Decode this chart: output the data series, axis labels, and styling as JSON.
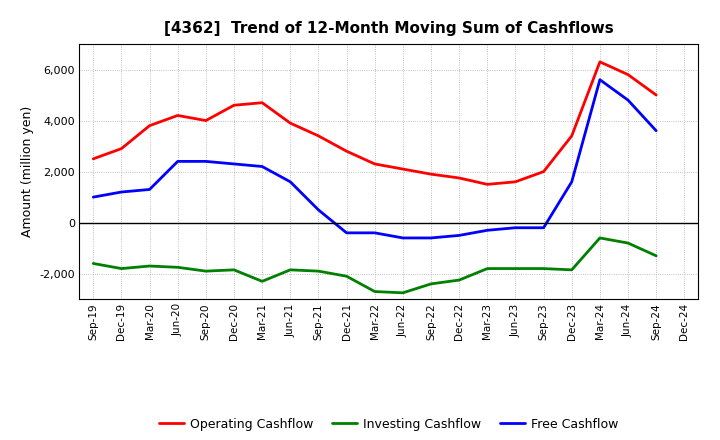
{
  "title": "[4362]  Trend of 12-Month Moving Sum of Cashflows",
  "ylabel": "Amount (million yen)",
  "x_labels": [
    "Sep-19",
    "Dec-19",
    "Mar-20",
    "Jun-20",
    "Sep-20",
    "Dec-20",
    "Mar-21",
    "Jun-21",
    "Sep-21",
    "Dec-21",
    "Mar-22",
    "Jun-22",
    "Sep-22",
    "Dec-22",
    "Mar-23",
    "Jun-23",
    "Sep-23",
    "Dec-23",
    "Mar-24",
    "Jun-24",
    "Sep-24",
    "Dec-24"
  ],
  "operating": [
    2500,
    2900,
    3800,
    4200,
    4000,
    4600,
    4700,
    3900,
    3400,
    2800,
    2300,
    2100,
    1900,
    1750,
    1500,
    1600,
    2000,
    3400,
    6300,
    5800,
    5000,
    null
  ],
  "investing": [
    -1600,
    -1800,
    -1700,
    -1750,
    -1900,
    -1850,
    -2300,
    -1850,
    -1900,
    -2100,
    -2700,
    -2750,
    -2400,
    -2250,
    -1800,
    -1800,
    -1800,
    -1850,
    -600,
    -800,
    -1300,
    null
  ],
  "free": [
    1000,
    1200,
    1300,
    2400,
    2400,
    2300,
    2200,
    1600,
    500,
    -400,
    -400,
    -600,
    -600,
    -500,
    -300,
    -200,
    -200,
    1600,
    5600,
    4800,
    3600,
    null
  ],
  "operating_color": "#FF0000",
  "investing_color": "#008000",
  "free_color": "#0000FF",
  "ylim": [
    -3000,
    7000
  ],
  "yticks": [
    -2000,
    0,
    2000,
    4000,
    6000
  ],
  "background_color": "#FFFFFF",
  "grid_color": "#999999",
  "plot_bg_color": "#FFFFFF",
  "line_width": 2.0
}
